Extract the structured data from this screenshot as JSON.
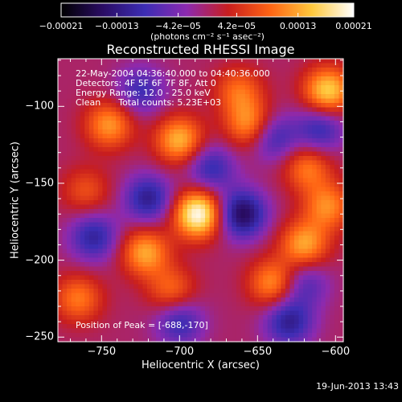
{
  "chart_data": {
    "type": "heatmap",
    "title": "Reconstructed RHESSI Image",
    "info_lines": [
      "22-May-2004 04:36:40.000 to 04:40:36.000",
      "Detectors: 4F 5F 6F 7F 8F, Att 0",
      "Energy Range: 12.0 - 25.0 keV"
    ],
    "info_clean_label": "Clean",
    "info_counts": "Total counts: 5.23E+03",
    "peak_label": "Position of Peak = [-688,-170]",
    "xlabel": "Heliocentric X (arcsec)",
    "ylabel": "Heliocentric Y (arcsec)",
    "xlim": [
      -778,
      -595
    ],
    "ylim": [
      -253,
      -69
    ],
    "x_ticks": [
      -750,
      -700,
      -650,
      -600
    ],
    "x_tick_labels": [
      "−750",
      "−700",
      "−650",
      "−600"
    ],
    "y_ticks": [
      -100,
      -150,
      -200,
      -250
    ],
    "y_tick_labels": [
      "−100",
      "−150",
      "−200",
      "−250"
    ],
    "colorbar": {
      "min": -0.00021,
      "max": 0.00021,
      "tick_values": [
        -0.00021,
        -0.00013,
        -4.2e-05,
        4.2e-05,
        0.00013,
        0.00021
      ],
      "tick_labels": [
        "−0.00021",
        "−0.00013",
        "−4.2e−05",
        "4.2e−05",
        "0.00013",
        "0.00021"
      ],
      "unit_label": "(photons cm⁻² s⁻¹ asec⁻²)"
    },
    "peak": {
      "x": -688,
      "y": -170
    },
    "peak_value": 0.00021,
    "grid": false,
    "colormap": [
      "#000000",
      "#2a0c64",
      "#3c2db4",
      "#8c2ab0",
      "#c81e1e",
      "#ff6414",
      "#ffc83c",
      "#ffffff"
    ],
    "sources": [
      {
        "x": -688,
        "y": -170,
        "amp": 0.00021
      },
      {
        "x": -700,
        "y": -122,
        "amp": 0.00014
      },
      {
        "x": -745,
        "y": -112,
        "amp": 0.00012
      },
      {
        "x": -655,
        "y": -112,
        "amp": 0.00012
      },
      {
        "x": -605,
        "y": -90,
        "amp": 0.00016
      },
      {
        "x": -620,
        "y": -190,
        "amp": 0.00013
      },
      {
        "x": -605,
        "y": -165,
        "amp": 0.00011
      },
      {
        "x": -722,
        "y": -195,
        "amp": 0.00013
      },
      {
        "x": -765,
        "y": -225,
        "amp": 0.0001
      },
      {
        "x": -640,
        "y": -215,
        "amp": 0.00012
      },
      {
        "x": -705,
        "y": -220,
        "amp": 9e-05
      },
      {
        "x": -618,
        "y": -140,
        "amp": 0.0001
      },
      {
        "x": -662,
        "y": -90,
        "amp": 9e-05
      },
      {
        "x": -760,
        "y": -155,
        "amp": 7e-05
      },
      {
        "x": -680,
        "y": -140,
        "amp": -0.0001
      },
      {
        "x": -660,
        "y": -170,
        "amp": -0.00016
      },
      {
        "x": -720,
        "y": -160,
        "amp": -0.00012
      },
      {
        "x": -755,
        "y": -185,
        "amp": -0.00011
      },
      {
        "x": -700,
        "y": -240,
        "amp": -0.0001
      },
      {
        "x": -630,
        "y": -240,
        "amp": -0.00012
      },
      {
        "x": -640,
        "y": -120,
        "amp": -0.0001
      },
      {
        "x": -725,
        "y": -90,
        "amp": -9e-05
      },
      {
        "x": -610,
        "y": -115,
        "amp": -0.0001
      },
      {
        "x": -620,
        "y": -215,
        "amp": -8e-05
      }
    ]
  },
  "footer": {
    "timestamp": "19-Jun-2013 13:43"
  }
}
